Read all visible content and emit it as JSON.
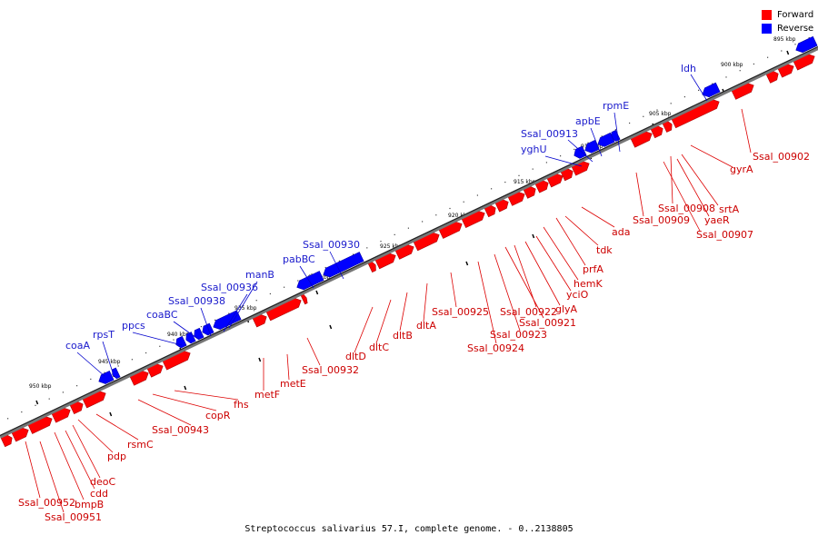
{
  "legend": {
    "forward_label": "Forward",
    "reverse_label": "Reverse",
    "forward_color": "#ff0000",
    "reverse_color": "#0000ff"
  },
  "caption": "Streptococcus salivarius 57.I, complete genome. - 0..2138805",
  "ticks": [
    "895 kbp",
    "900 kbp",
    "905 kbp",
    "910 kbp",
    "915 kbp",
    "920 kbp",
    "925 kbp",
    "930 kbp",
    "935 kbp",
    "940 kbp",
    "945 kbp",
    "950 kbp"
  ],
  "reverse_genes": [
    "ldh",
    "rpmE",
    "apbE",
    "Ssal_00913",
    "yghU",
    "Ssal_00930",
    "pabBC",
    "manB",
    "Ssal_00936",
    "Ssal_00938",
    "coaBC",
    "ppcs",
    "rpsT",
    "coaA"
  ],
  "forward_genes": [
    "Ssal_00902",
    "gyrA",
    "srtA",
    "Ssal_00908",
    "yaeR",
    "Ssal_00907",
    "Ssal_00909",
    "ada",
    "tdk",
    "prfA",
    "hemK",
    "yciO",
    "glyA",
    "Ssal_00922",
    "Ssal_00921",
    "Ssal_00923",
    "Ssal_00924",
    "Ssal_00925",
    "dltA",
    "dltB",
    "dltC",
    "dltD",
    "Ssal_00932",
    "metE",
    "metF",
    "fhs",
    "copR",
    "Ssal_00943",
    "rsmC",
    "pdp",
    "deoC",
    "cdd",
    "bmpB",
    "Ssal_00952",
    "Ssal_00951"
  ]
}
